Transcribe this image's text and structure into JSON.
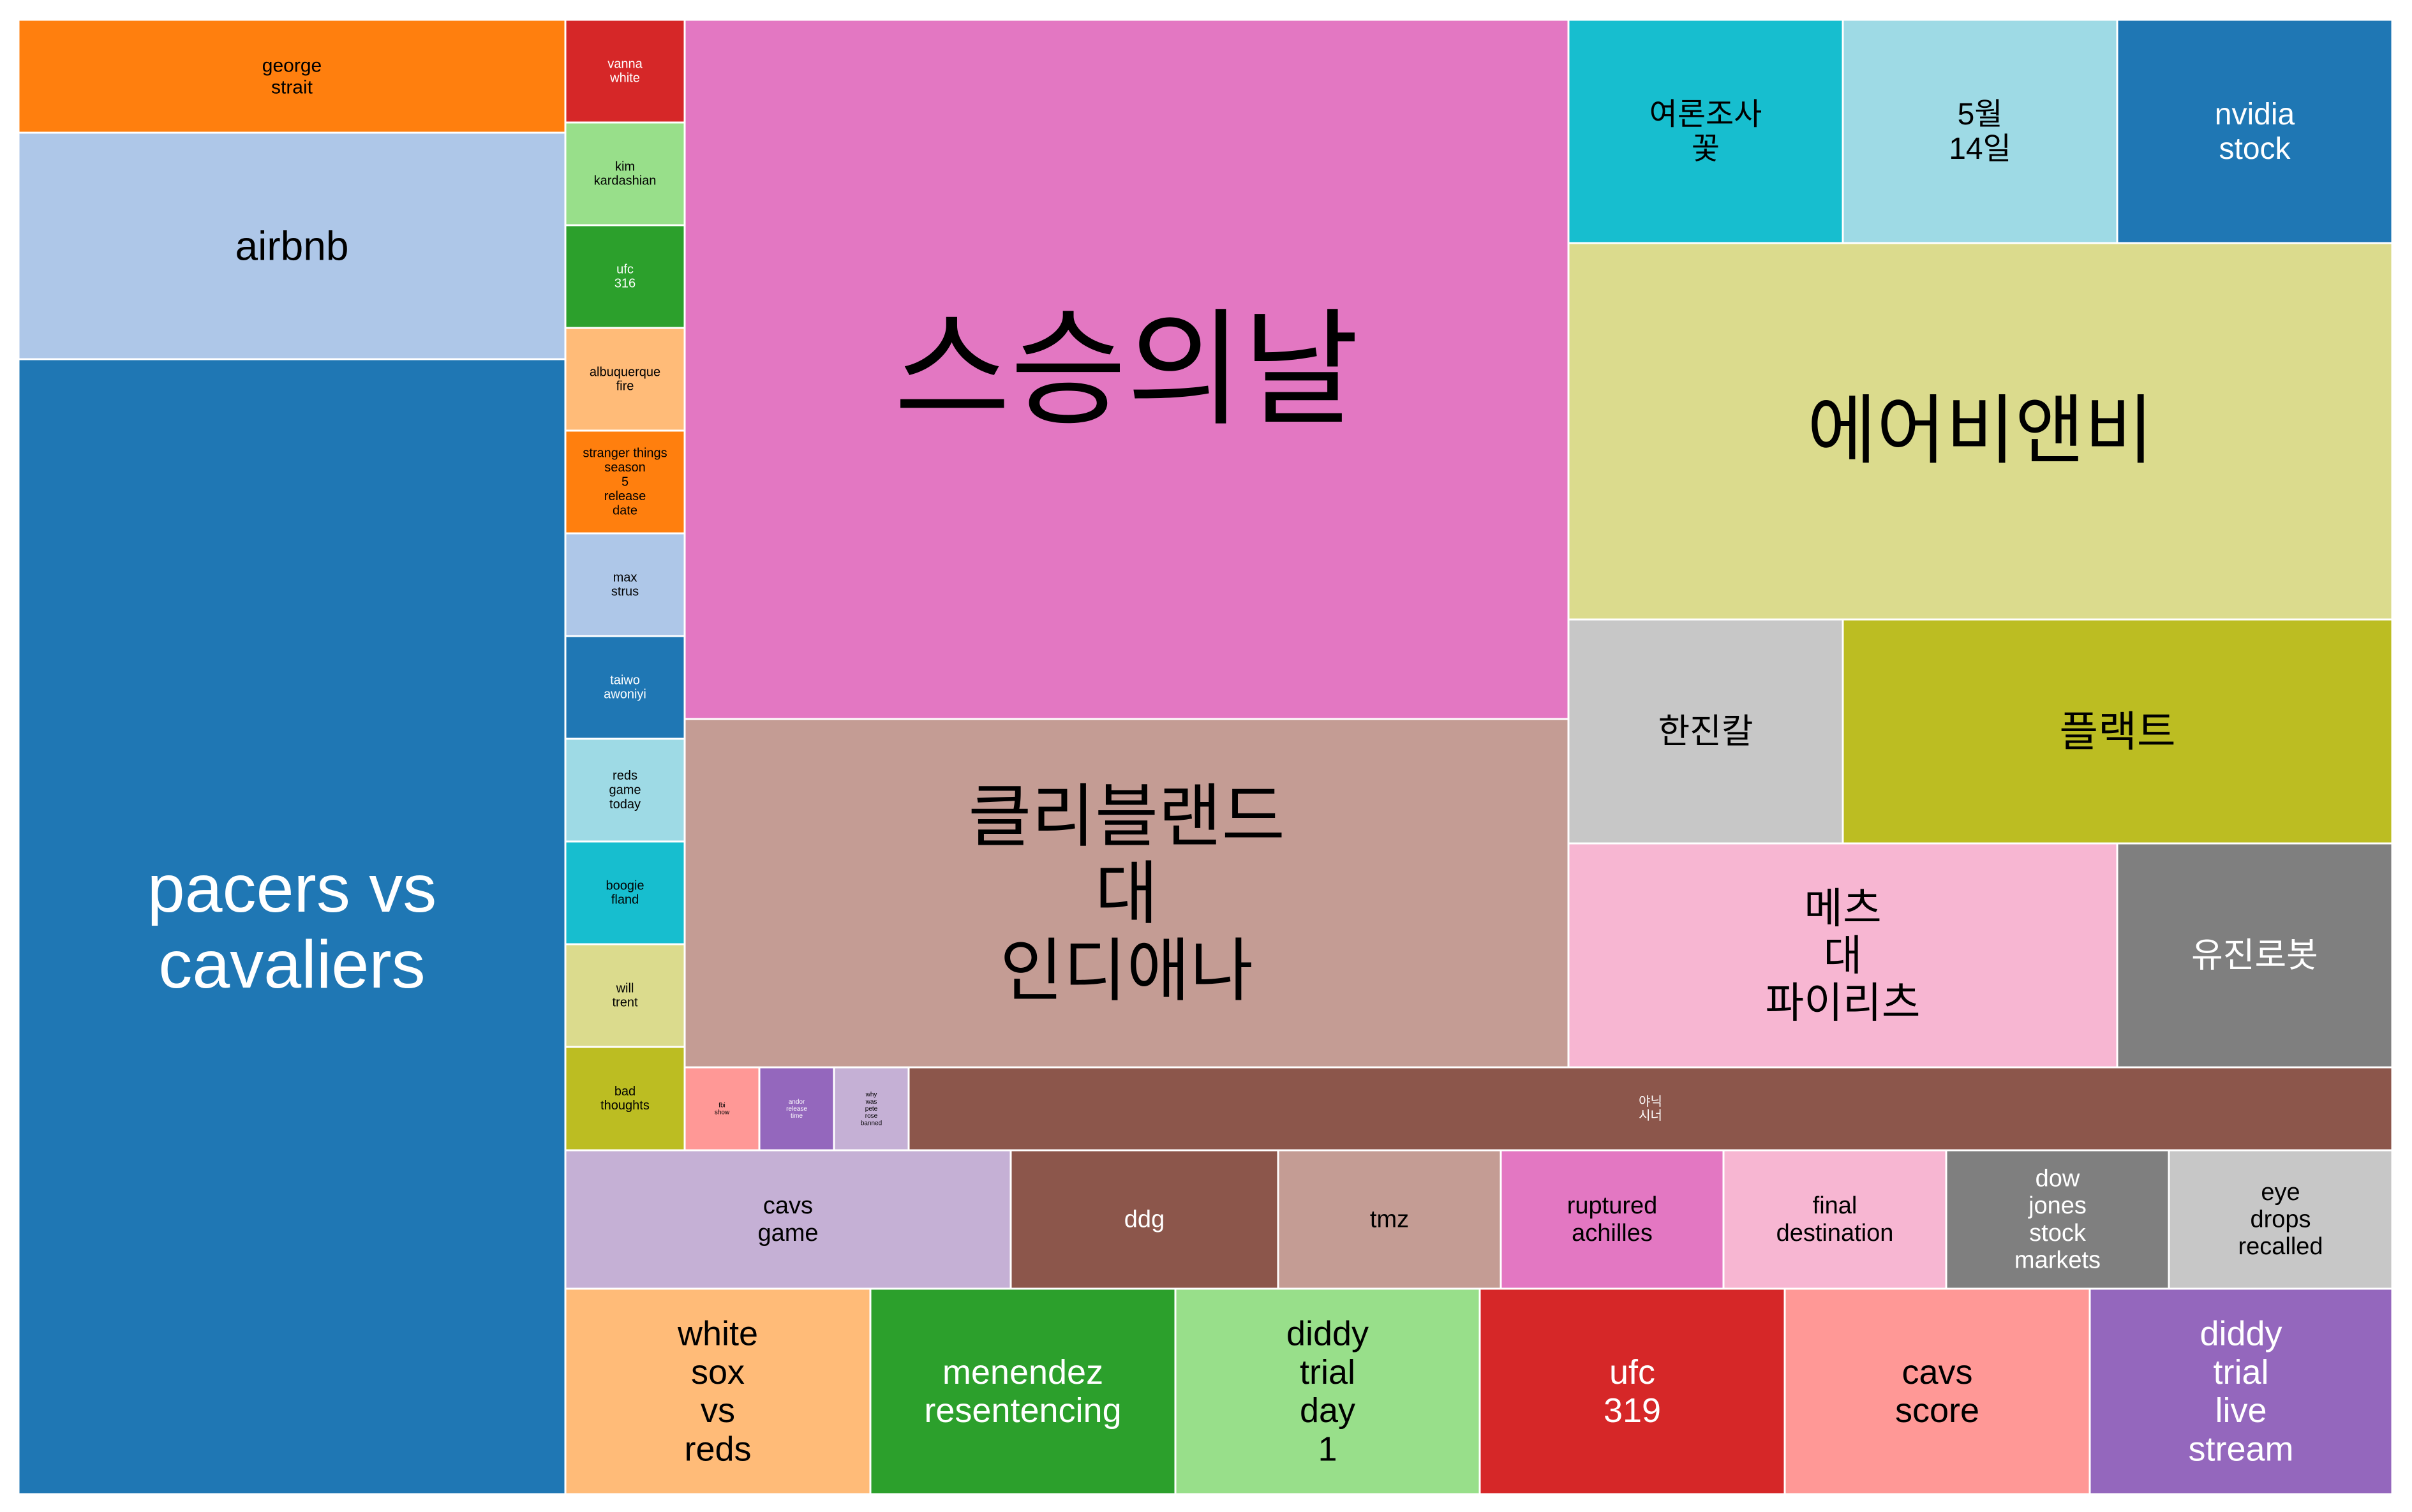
{
  "chart_data": {
    "type": "treemap",
    "title": "",
    "items": [
      {
        "label": "pacers vs cavaliers",
        "color": "#1f77b4",
        "text_color": "#ffffff"
      },
      {
        "label": "airbnb",
        "color": "#aec7e8",
        "text_color": "#000000"
      },
      {
        "label": "george strait",
        "color": "#ff7f0e",
        "text_color": "#000000"
      },
      {
        "label": "vanna white",
        "color": "#d62728",
        "text_color": "#ffffff"
      },
      {
        "label": "kim kardashian",
        "color": "#98df8a",
        "text_color": "#000000"
      },
      {
        "label": "ufc 316",
        "color": "#2ca02c",
        "text_color": "#ffffff"
      },
      {
        "label": "albuquerque fire",
        "color": "#ffbb78",
        "text_color": "#000000"
      },
      {
        "label": "stranger things season 5 release date",
        "color": "#ff7f0e",
        "text_color": "#000000"
      },
      {
        "label": "max strus",
        "color": "#aec7e8",
        "text_color": "#000000"
      },
      {
        "label": "taiwo awoniyi",
        "color": "#1f77b4",
        "text_color": "#ffffff"
      },
      {
        "label": "reds game today",
        "color": "#9edae5",
        "text_color": "#000000"
      },
      {
        "label": "boogie fland",
        "color": "#17becf",
        "text_color": "#000000"
      },
      {
        "label": "will trent",
        "color": "#dbdb8d",
        "text_color": "#000000"
      },
      {
        "label": "bad thoughts",
        "color": "#bcbd22",
        "text_color": "#000000"
      },
      {
        "label": "스승의날",
        "color": "#e377c2",
        "text_color": "#000000"
      },
      {
        "label": "클리블랜드 대 인디애나",
        "color": "#c49c94",
        "text_color": "#000000"
      },
      {
        "label": "여론조사 꽃",
        "color": "#17becf",
        "text_color": "#000000"
      },
      {
        "label": "5월 14일",
        "color": "#9edae5",
        "text_color": "#000000"
      },
      {
        "label": "nvidia stock",
        "color": "#1f77b4",
        "text_color": "#ffffff"
      },
      {
        "label": "에어비앤비",
        "color": "#dbdb8d",
        "text_color": "#000000"
      },
      {
        "label": "한진칼",
        "color": "#c7c7c7",
        "text_color": "#000000"
      },
      {
        "label": "플랙트",
        "color": "#bcbd22",
        "text_color": "#000000"
      },
      {
        "label": "메츠 대 파이리츠",
        "color": "#f7b6d2",
        "text_color": "#000000"
      },
      {
        "label": "유진로봇",
        "color": "#7f7f7f",
        "text_color": "#ffffff"
      },
      {
        "label": "fbi show",
        "color": "#ff9896",
        "text_color": "#000000"
      },
      {
        "label": "andor release time",
        "color": "#9467bd",
        "text_color": "#ffffff"
      },
      {
        "label": "why was pete rose banned",
        "color": "#c5b0d5",
        "text_color": "#000000"
      },
      {
        "label": "야닉 시너",
        "color": "#8c564b",
        "text_color": "#ffffff"
      },
      {
        "label": "cavs game",
        "color": "#c5b0d5",
        "text_color": "#000000"
      },
      {
        "label": "ddg",
        "color": "#8c564b",
        "text_color": "#ffffff"
      },
      {
        "label": "tmz",
        "color": "#c49c94",
        "text_color": "#000000"
      },
      {
        "label": "ruptured achilles",
        "color": "#e377c2",
        "text_color": "#000000"
      },
      {
        "label": "final destination",
        "color": "#f7b6d2",
        "text_color": "#000000"
      },
      {
        "label": "dow jones stock markets",
        "color": "#7f7f7f",
        "text_color": "#ffffff"
      },
      {
        "label": "eye drops recalled",
        "color": "#c7c7c7",
        "text_color": "#000000"
      },
      {
        "label": "white sox vs reds",
        "color": "#ffbb78",
        "text_color": "#000000"
      },
      {
        "label": "menendez resentencing",
        "color": "#2ca02c",
        "text_color": "#ffffff"
      },
      {
        "label": "diddy trial day 1",
        "color": "#98df8a",
        "text_color": "#000000"
      },
      {
        "label": "ufc 319",
        "color": "#d62728",
        "text_color": "#ffffff"
      },
      {
        "label": "cavs score",
        "color": "#ff9896",
        "text_color": "#000000"
      },
      {
        "label": "diddy trial live stream",
        "color": "#9467bd",
        "text_color": "#ffffff"
      }
    ]
  }
}
